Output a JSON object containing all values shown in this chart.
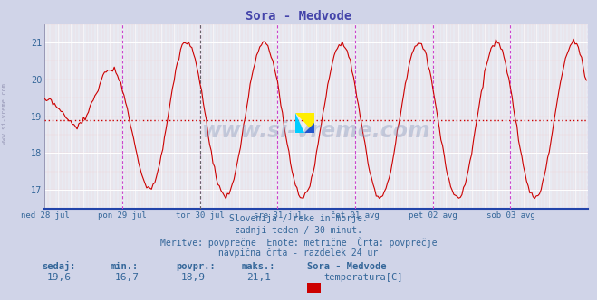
{
  "title": "Sora - Medvode",
  "title_color": "#4444aa",
  "bg_color": "#d0d4e8",
  "plot_bg_color": "#e8eaf2",
  "line_color": "#cc0000",
  "avg_value": 18.9,
  "ylim_min": 16.5,
  "ylim_max": 21.5,
  "yticks": [
    17,
    18,
    19,
    20,
    21
  ],
  "vline_color": "#cc44cc",
  "vline_color_dark": "#444444",
  "grid_major_color": "#ffffff",
  "grid_minor_color": "#f0d8d8",
  "avg_line_color": "#cc0000",
  "watermark": "www.si-vreme.com",
  "logo_yellow": "#ffee00",
  "logo_blue": "#2255cc",
  "logo_cyan": "#00ccff",
  "subtitle_lines": [
    "Slovenija / reke in morje.",
    "zadnji teden / 30 minut.",
    "Meritve: povprečne  Enote: metrične  Črta: povprečje",
    "navpična črta - razdelek 24 ur"
  ],
  "footer_labels": [
    "sedaj:",
    "min.:",
    "povpr.:",
    "maks.:"
  ],
  "footer_values": [
    "19,6",
    "16,7",
    "18,9",
    "21,1"
  ],
  "legend_station": "Sora - Medvode",
  "legend_label": "temperatura[C]",
  "legend_color": "#cc0000",
  "x_tick_labels": [
    "ned 28 jul",
    "pon 29 jul",
    "tor 30 jul",
    "sre 31 jul",
    "čet 01 avg",
    "pet 02 avg",
    "sob 03 avg"
  ],
  "n_points": 336,
  "left_text": "www.si-vreme.com",
  "text_color": "#336699"
}
